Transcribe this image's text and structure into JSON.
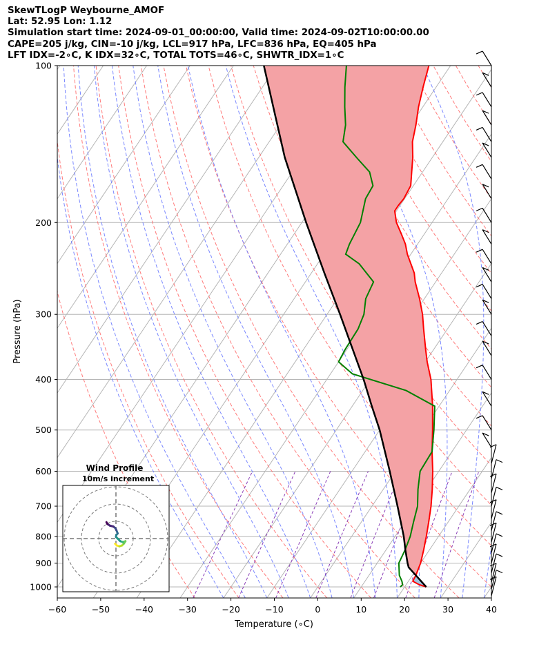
{
  "header": {
    "title": "SkewTLogP Weybourne_AMOF",
    "location": "Lat: 52.95   Lon: 1.12",
    "times": "Simulation start time: 2024-09-01_00:00:00, Valid time: 2024-09-02T10:00:00.00",
    "indices1": "CAPE=205 j/kg, CIN=-10 j/kg, LCL=917 hPa, LFC=836 hPa, EQ=405 hPa",
    "indices2": "LFT IDX=-2∘C, K IDX=32∘C, TOTAL TOTS=46∘C, SHWTR_IDX=1∘C"
  },
  "chart_data": {
    "type": "skewt-logp",
    "xlabel": "Temperature (∘C)",
    "ylabel": "Pressure (hPa)",
    "xlim": [
      -60,
      40
    ],
    "ylim": [
      1050,
      100
    ],
    "x_ticks": [
      -60,
      -50,
      -40,
      -30,
      -20,
      -10,
      0,
      10,
      20,
      30,
      40
    ],
    "x_tick_labels": [
      "−60",
      "−50",
      "−40",
      "−30",
      "−20",
      "−10",
      "0",
      "10",
      "20",
      "30",
      "40"
    ],
    "p_ticks": [
      100,
      200,
      300,
      400,
      500,
      600,
      700,
      800,
      900,
      1000
    ],
    "grid": true,
    "colors": {
      "temperature": "#ff0000",
      "dewpoint": "#008000",
      "parcel": "#000000",
      "cape_fill": "#a1c3df",
      "cin_fill": "#f4a2a5",
      "dry_adiabats": "#ff6b6b",
      "moist_adiabats": "#6b7bff",
      "mixing_ratio": "#8b3fb8",
      "isotherms": "#b5b5b5"
    },
    "series": [
      {
        "key": "temperature",
        "points": [
          [
            1000,
            25
          ],
          [
            990,
            23
          ],
          [
            975,
            21
          ],
          [
            950,
            20.8
          ],
          [
            900,
            20
          ],
          [
            850,
            18.7
          ],
          [
            800,
            17.2
          ],
          [
            750,
            15.5
          ],
          [
            700,
            13.6
          ],
          [
            650,
            11.3
          ],
          [
            600,
            8.6
          ],
          [
            550,
            5.4
          ],
          [
            500,
            2.2
          ],
          [
            450,
            -1.5
          ],
          [
            400,
            -6
          ],
          [
            370,
            -9.6
          ],
          [
            350,
            -11.9
          ],
          [
            320,
            -15.5
          ],
          [
            300,
            -18
          ],
          [
            280,
            -21.1
          ],
          [
            260,
            -24.7
          ],
          [
            250,
            -26.3
          ],
          [
            230,
            -30.8
          ],
          [
            220,
            -32.8
          ],
          [
            210,
            -35.4
          ],
          [
            200,
            -38.2
          ],
          [
            190,
            -40.4
          ],
          [
            185,
            -40.4
          ],
          [
            180,
            -40.2
          ],
          [
            170,
            -40.6
          ],
          [
            160,
            -42.5
          ],
          [
            150,
            -44.5
          ],
          [
            140,
            -47
          ],
          [
            130,
            -48.8
          ],
          [
            120,
            -51
          ],
          [
            110,
            -53
          ],
          [
            100,
            -55
          ]
        ]
      },
      {
        "key": "dewpoint",
        "points": [
          [
            1000,
            19
          ],
          [
            990,
            19.2
          ],
          [
            975,
            18.5
          ],
          [
            950,
            17
          ],
          [
            900,
            15
          ],
          [
            850,
            14.4
          ],
          [
            800,
            13.5
          ],
          [
            750,
            12
          ],
          [
            700,
            10.5
          ],
          [
            650,
            8
          ],
          [
            600,
            5.7
          ],
          [
            550,
            5.4
          ],
          [
            500,
            2.5
          ],
          [
            450,
            -1
          ],
          [
            420,
            -10
          ],
          [
            390,
            -25
          ],
          [
            370,
            -30
          ],
          [
            350,
            -30.4
          ],
          [
            320,
            -30.6
          ],
          [
            300,
            -31.5
          ],
          [
            280,
            -33.5
          ],
          [
            260,
            -34.3
          ],
          [
            240,
            -40.4
          ],
          [
            230,
            -45
          ],
          [
            220,
            -45.7
          ],
          [
            200,
            -46.5
          ],
          [
            180,
            -49
          ],
          [
            170,
            -49.3
          ],
          [
            160,
            -52.2
          ],
          [
            150,
            -57.5
          ],
          [
            140,
            -63
          ],
          [
            130,
            -65
          ],
          [
            120,
            -68
          ],
          [
            110,
            -71
          ],
          [
            100,
            -74
          ]
        ]
      },
      {
        "key": "parcel",
        "points": [
          [
            1000,
            25
          ],
          [
            950,
            20.8
          ],
          [
            917,
            17.9
          ],
          [
            900,
            17
          ],
          [
            850,
            14.5
          ],
          [
            800,
            12
          ],
          [
            700,
            5.9
          ],
          [
            600,
            -1.3
          ],
          [
            500,
            -10
          ],
          [
            450,
            -15.5
          ],
          [
            400,
            -21.5
          ],
          [
            350,
            -28.7
          ],
          [
            300,
            -37
          ],
          [
            250,
            -47
          ],
          [
            200,
            -59
          ],
          [
            150,
            -74
          ],
          [
            100,
            -93
          ]
        ]
      }
    ],
    "hodograph": {
      "title": "Wind Profile",
      "subtitle": "10m/s increment",
      "ring_step_ms": 10,
      "uv": [
        [
          -0.5,
          -3
        ],
        [
          0.5,
          -4
        ],
        [
          2,
          -4.5
        ],
        [
          3.5,
          -4
        ],
        [
          4.5,
          -3
        ],
        [
          5.5,
          -1.5
        ],
        [
          4,
          -2
        ],
        [
          2.5,
          -1.5
        ],
        [
          1,
          0
        ],
        [
          0,
          1
        ],
        [
          0.2,
          2
        ],
        [
          1,
          3
        ],
        [
          0.2,
          5
        ],
        [
          -0.3,
          6
        ],
        [
          -1.5,
          7
        ],
        [
          -3.5,
          7.5
        ],
        [
          -5,
          8.5
        ],
        [
          -5.5,
          9.5
        ]
      ],
      "colormap": "viridis"
    }
  }
}
